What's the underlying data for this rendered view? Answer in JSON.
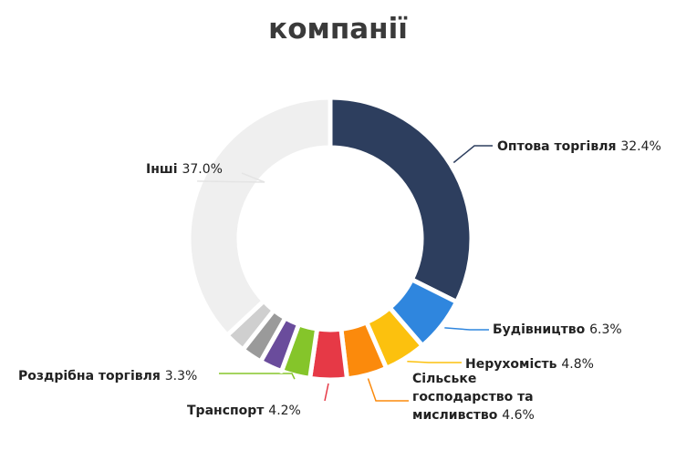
{
  "title": "компанії",
  "chart_data": {
    "type": "pie",
    "donut": true,
    "title": "компанії",
    "slices": [
      {
        "label": "Оптова торгівля",
        "value": 32.4,
        "value_label": "32.4%",
        "color": "#2d3e5e"
      },
      {
        "label": "Будівництво",
        "value": 6.3,
        "value_label": "6.3%",
        "color": "#2f86de"
      },
      {
        "label": "Нерухомість",
        "value": 4.8,
        "value_label": "4.8%",
        "color": "#fcc10e"
      },
      {
        "label": "Сільське господарство та мисливство",
        "value": 4.6,
        "value_label": "4.6%",
        "color": "#fb8a0c"
      },
      {
        "label": "Транспорт",
        "value": 4.2,
        "value_label": "4.2%",
        "color": "#e63946"
      },
      {
        "label": "Роздрібна торгівля",
        "value": 3.3,
        "value_label": "3.3%",
        "color": "#85c52a"
      },
      {
        "label": "",
        "value": 2.6,
        "value_label": "",
        "color": "#6a4c9c"
      },
      {
        "label": "",
        "value": 2.4,
        "value_label": "",
        "color": "#9a9a9a"
      },
      {
        "label": "",
        "value": 2.4,
        "value_label": "",
        "color": "#cfcfcf"
      },
      {
        "label": "Інші",
        "value": 37.0,
        "value_label": "37.0%",
        "color": "#efefef"
      }
    ]
  }
}
